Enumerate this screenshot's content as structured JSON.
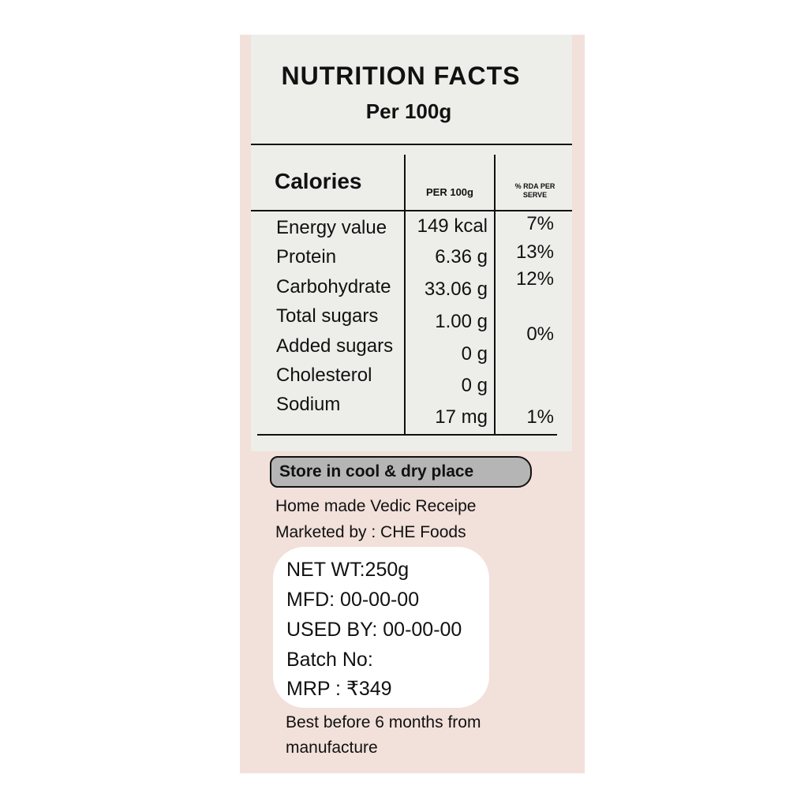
{
  "header": {
    "title": "NUTRITION FACTS",
    "subtitle": "Per 100g"
  },
  "table": {
    "header": {
      "label": "Calories",
      "amount": "PER 100g",
      "rda": "% RDA PER SERVE"
    },
    "rows": [
      {
        "name": "Energy value",
        "amount": "149 kcal",
        "rda": "7%"
      },
      {
        "name": "Protein",
        "amount": "6.36 g",
        "rda": "13%"
      },
      {
        "name": "Carbohydrate",
        "amount": "33.06 g",
        "rda": "12%"
      },
      {
        "name": "Total sugars",
        "amount": "1.00 g",
        "rda": "0%"
      },
      {
        "name": "Added sugars",
        "amount": "0 g"
      },
      {
        "name": "Cholesterol",
        "amount": "0 g"
      },
      {
        "name": "Sodium",
        "amount": "17 mg",
        "rda": "1%"
      }
    ]
  },
  "storage": "Store in cool & dry place",
  "info": [
    "Home made Vedic Receipe",
    "Marketed by : CHE Foods"
  ],
  "details": [
    "NET WT:250g",
    "MFD: 00-00-00",
    "USED BY: 00-00-00",
    "Batch No:",
    "MRP : ₹349"
  ],
  "footer": "Best before 6 months from manufacture"
}
